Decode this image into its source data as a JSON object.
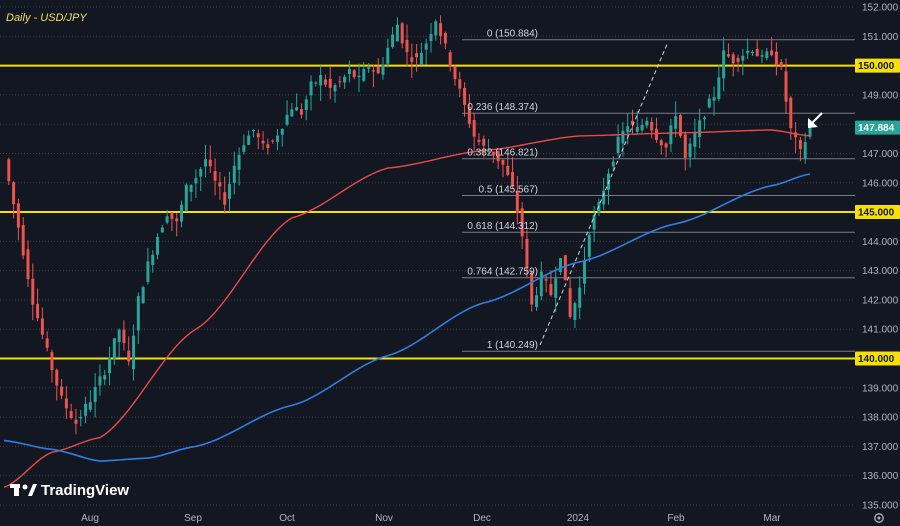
{
  "chart_data": {
    "type": "candlestick",
    "title": "Daily - USD/JPY",
    "ylim": [
      135.0,
      152.0
    ],
    "yticks": [
      "152.000",
      "151.000",
      "150.000",
      "149.000",
      "148.000",
      "147.000",
      "146.000",
      "145.000",
      "144.000",
      "143.000",
      "142.000",
      "141.000",
      "140.000",
      "139.000",
      "138.000",
      "137.000",
      "136.000",
      "135.000"
    ],
    "xticks": [
      "Aug",
      "Sep",
      "Oct",
      "Nov",
      "Dec",
      "2024",
      "Feb",
      "Mar"
    ],
    "last_price": 147.884,
    "last_price_label": "147.884",
    "key_levels": [
      {
        "value": 150.0,
        "label": "150.000"
      },
      {
        "value": 145.0,
        "label": "145.000"
      },
      {
        "value": 140.0,
        "label": "140.000"
      }
    ],
    "fibonacci": [
      {
        "ratio": "0",
        "value": 150.884,
        "label": "0 (150.884)"
      },
      {
        "ratio": "0.236",
        "value": 148.374,
        "label": "0.236 (148.374)"
      },
      {
        "ratio": "0.382",
        "value": 146.821,
        "label": "0.382 (146.821)"
      },
      {
        "ratio": "0.5",
        "value": 145.567,
        "label": "0.5 (145.567)"
      },
      {
        "ratio": "0.618",
        "value": 144.312,
        "label": "0.618 (144.312)"
      },
      {
        "ratio": "0.764",
        "value": 142.759,
        "label": "0.764 (142.759)"
      },
      {
        "ratio": "1",
        "value": 140.249,
        "label": "1 (140.249)"
      }
    ],
    "close_path": [
      [
        0,
        146.8
      ],
      [
        3,
        144.5
      ],
      [
        6,
        142.0
      ],
      [
        9,
        140.2
      ],
      [
        12,
        138.6
      ],
      [
        15,
        137.8
      ],
      [
        18,
        138.6
      ],
      [
        21,
        139.6
      ],
      [
        24,
        141.0
      ],
      [
        26,
        139.8
      ],
      [
        28,
        142.0
      ],
      [
        30,
        143.2
      ],
      [
        32,
        144.2
      ],
      [
        34,
        145.0
      ],
      [
        36,
        144.6
      ],
      [
        38,
        145.8
      ],
      [
        40,
        146.2
      ],
      [
        42,
        146.8
      ],
      [
        44,
        146.0
      ],
      [
        46,
        145.4
      ],
      [
        48,
        146.6
      ],
      [
        50,
        147.4
      ],
      [
        52,
        147.8
      ],
      [
        54,
        147.2
      ],
      [
        56,
        147.4
      ],
      [
        58,
        148.0
      ],
      [
        60,
        148.6
      ],
      [
        62,
        148.4
      ],
      [
        64,
        149.3
      ],
      [
        66,
        149.6
      ],
      [
        68,
        149.2
      ],
      [
        70,
        149.4
      ],
      [
        72,
        149.8
      ],
      [
        74,
        149.5
      ],
      [
        76,
        150.0
      ],
      [
        78,
        149.7
      ],
      [
        80,
        150.6
      ],
      [
        82,
        151.4
      ],
      [
        84,
        150.4
      ],
      [
        86,
        150.2
      ],
      [
        88,
        150.8
      ],
      [
        90,
        151.6
      ],
      [
        92,
        150.6
      ],
      [
        94,
        149.6
      ],
      [
        96,
        148.6
      ],
      [
        98,
        147.6
      ],
      [
        100,
        147.2
      ],
      [
        102,
        147.0
      ],
      [
        104,
        146.6
      ],
      [
        106,
        145.8
      ],
      [
        108,
        144.2
      ],
      [
        110,
        141.8
      ],
      [
        112,
        142.8
      ],
      [
        114,
        142.2
      ],
      [
        116,
        143.6
      ],
      [
        118,
        141.4
      ],
      [
        120,
        142.4
      ],
      [
        122,
        144.4
      ],
      [
        124,
        145.2
      ],
      [
        126,
        146.4
      ],
      [
        128,
        147.4
      ],
      [
        130,
        148.0
      ],
      [
        132,
        147.8
      ],
      [
        134,
        148.2
      ],
      [
        136,
        147.6
      ],
      [
        138,
        147.2
      ],
      [
        140,
        148.4
      ],
      [
        142,
        146.8
      ],
      [
        144,
        147.6
      ],
      [
        146,
        148.4
      ],
      [
        148,
        149.0
      ],
      [
        150,
        150.4
      ],
      [
        152,
        150.2
      ],
      [
        154,
        150.4
      ],
      [
        156,
        150.6
      ],
      [
        158,
        150.2
      ],
      [
        160,
        150.5
      ],
      [
        162,
        149.8
      ],
      [
        164,
        147.8
      ],
      [
        166,
        147.0
      ],
      [
        168,
        147.884
      ]
    ],
    "ma_red": [
      [
        0,
        135.6
      ],
      [
        10,
        136.8
      ],
      [
        20,
        137.3
      ],
      [
        40,
        141.0
      ],
      [
        60,
        144.8
      ],
      [
        80,
        146.5
      ],
      [
        100,
        147.1
      ],
      [
        120,
        147.6
      ],
      [
        140,
        147.7
      ],
      [
        160,
        147.8
      ],
      [
        168,
        147.6
      ]
    ],
    "ma_blue": [
      [
        0,
        137.2
      ],
      [
        10,
        136.9
      ],
      [
        20,
        136.5
      ],
      [
        30,
        136.6
      ],
      [
        40,
        137.0
      ],
      [
        60,
        138.4
      ],
      [
        80,
        140.1
      ],
      [
        100,
        141.9
      ],
      [
        120,
        143.3
      ],
      [
        140,
        144.6
      ],
      [
        160,
        145.9
      ],
      [
        168,
        146.3
      ]
    ],
    "annotations": [
      "rising trendline",
      "arrow pointing to last candle"
    ]
  },
  "branding": {
    "logo_text": "TradingView",
    "logo_icon": "tradingview-logo-icon"
  },
  "controls": {
    "settings_icon": "gear-icon"
  }
}
